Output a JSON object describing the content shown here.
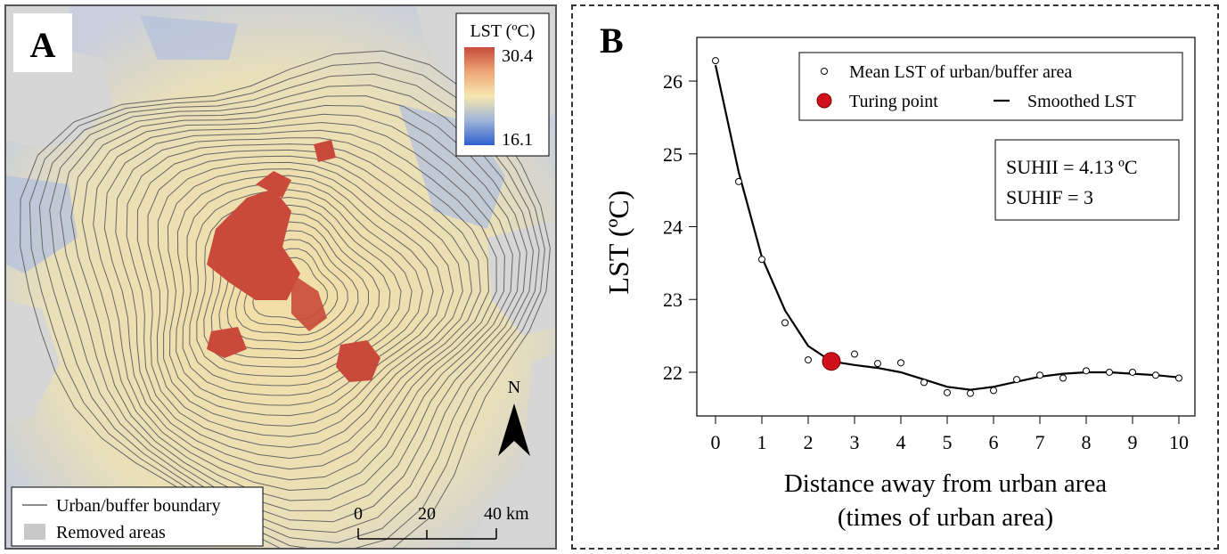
{
  "panel_a": {
    "letter": "A",
    "legend_title": "LST (ºC)",
    "legend_max": "30.4",
    "legend_min": "16.1",
    "north_label": "N",
    "scale_labels": [
      "0",
      "20",
      "40 km"
    ],
    "bottom_legend": {
      "boundary_label": "Urban/buffer boundary",
      "removed_label": "Removed areas"
    },
    "colors": {
      "hot": "#c94a3a",
      "mid": "#f6e7b0",
      "cool": "#3a6fd0",
      "removed": "#d9d9d9"
    }
  },
  "panel_b": {
    "letter": "B",
    "legend": {
      "mean_label": "Mean LST of urban/buffer area",
      "turning_label": "Turing point",
      "smoothed_label": "Smoothed LST"
    },
    "stats": {
      "suhii": "SUHII = 4.13 ºC",
      "suhif": "SUHIF = 3"
    }
  },
  "chart_data": {
    "type": "scatter",
    "xlabel": "Distance away from urban area",
    "xlabel_line2": "(times of urban area)",
    "ylabel": "LST (ºC)",
    "xlim": [
      0,
      10
    ],
    "ylim": [
      21.4,
      26.6
    ],
    "x_ticks": [
      0,
      1,
      2,
      3,
      4,
      5,
      6,
      7,
      8,
      9,
      10
    ],
    "y_ticks": [
      22,
      23,
      24,
      25,
      26
    ],
    "series": [
      {
        "name": "Mean LST of urban/buffer area",
        "points": [
          [
            0,
            26.28
          ],
          [
            0.5,
            24.62
          ],
          [
            1,
            23.55
          ],
          [
            1.5,
            22.68
          ],
          [
            2,
            22.17
          ],
          [
            2.5,
            22.15
          ],
          [
            3,
            22.25
          ],
          [
            3.5,
            22.12
          ],
          [
            4,
            22.13
          ],
          [
            4.5,
            21.86
          ],
          [
            5,
            21.72
          ],
          [
            5.5,
            21.71
          ],
          [
            6,
            21.75
          ],
          [
            6.5,
            21.9
          ],
          [
            7,
            21.96
          ],
          [
            7.5,
            21.92
          ],
          [
            8,
            22.02
          ],
          [
            8.5,
            22.0
          ],
          [
            9,
            22.0
          ],
          [
            9.5,
            21.96
          ],
          [
            10,
            21.92
          ]
        ]
      },
      {
        "name": "Smoothed LST",
        "points": [
          [
            0,
            26.22
          ],
          [
            0.5,
            24.75
          ],
          [
            1,
            23.58
          ],
          [
            1.5,
            22.85
          ],
          [
            2,
            22.36
          ],
          [
            2.5,
            22.15
          ],
          [
            3,
            22.1
          ],
          [
            3.5,
            22.06
          ],
          [
            4,
            22.0
          ],
          [
            4.5,
            21.9
          ],
          [
            5,
            21.8
          ],
          [
            5.5,
            21.76
          ],
          [
            6,
            21.8
          ],
          [
            6.5,
            21.87
          ],
          [
            7,
            21.94
          ],
          [
            7.5,
            21.98
          ],
          [
            8,
            22.0
          ],
          [
            8.5,
            22.0
          ],
          [
            9,
            21.98
          ],
          [
            9.5,
            21.96
          ],
          [
            10,
            21.93
          ]
        ]
      }
    ],
    "turning_point": [
      2.5,
      22.15
    ],
    "grid": false,
    "legend_position": "top-right"
  }
}
